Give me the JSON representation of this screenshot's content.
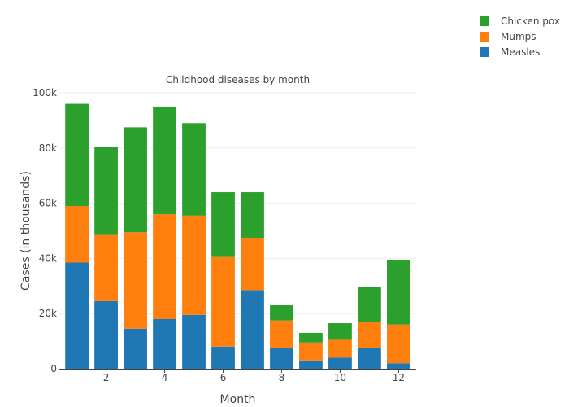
{
  "chart_data": {
    "type": "bar",
    "stacked": true,
    "title": "Childhood diseases by month",
    "xlabel": "Month",
    "ylabel": "Cases (in thousands)",
    "x": [
      1,
      2,
      3,
      4,
      5,
      6,
      7,
      8,
      9,
      10,
      11,
      12
    ],
    "xticks": [
      2,
      4,
      6,
      8,
      10,
      12
    ],
    "xtick_labels": [
      "2",
      "4",
      "6",
      "8",
      "10",
      "12"
    ],
    "yticks": [
      0,
      20000,
      40000,
      60000,
      80000,
      100000
    ],
    "ytick_labels": [
      "0",
      "20k",
      "40k",
      "60k",
      "80k",
      "100k"
    ],
    "xlim": [
      0.4,
      12.6
    ],
    "ylim": [
      0,
      100000
    ],
    "grid": true,
    "legend_position": "top-right",
    "series": [
      {
        "name": "Measles",
        "color": "#1f77b4",
        "values": [
          38500,
          24500,
          14500,
          18000,
          19500,
          8000,
          28500,
          7500,
          3000,
          4000,
          7500,
          2000
        ]
      },
      {
        "name": "Mumps",
        "color": "#ff7f0e",
        "values": [
          20500,
          24000,
          35000,
          38000,
          36000,
          32500,
          19000,
          10000,
          6500,
          6500,
          9500,
          14000
        ]
      },
      {
        "name": "Chicken pox",
        "color": "#2ca02c",
        "values": [
          37000,
          32000,
          38000,
          39000,
          33500,
          23500,
          16500,
          5500,
          3500,
          6000,
          12500,
          23500
        ]
      }
    ]
  }
}
